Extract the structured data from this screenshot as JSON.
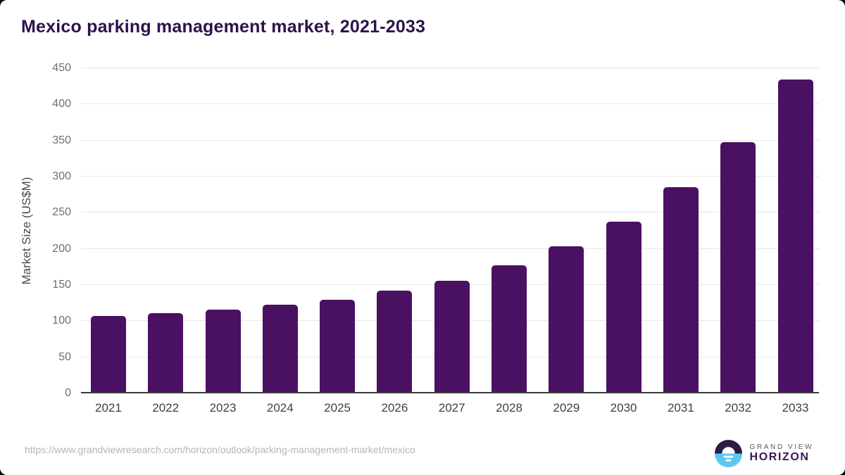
{
  "page": {
    "title": "Mexico parking management market, 2021-2033",
    "source_url": "https://www.grandviewresearch.com/horizon/outlook/parking-management-market/mexico"
  },
  "logo": {
    "brand_top": "GRAND VIEW",
    "brand_bottom": "HORIZON"
  },
  "colors": {
    "bar": "#4a1062",
    "title": "#2d124b",
    "y_axis_title": "#4a4a4a",
    "y_tick_label": "#6f6f6f",
    "x_tick_label": "#3f3f3f",
    "gridline": "#e7e7e7",
    "axis_line": "#3c3c3c",
    "url_text": "#b5b5b5",
    "logo_dark_half": "#2a1e45",
    "logo_blue_half": "#5dc6f1",
    "logo_grand_view_text": "#5a5a5a",
    "logo_horizon_text": "#3b1653"
  },
  "chart_data": {
    "type": "bar",
    "title": "Mexico parking management market, 2021-2033",
    "categories": [
      "2021",
      "2022",
      "2023",
      "2024",
      "2025",
      "2026",
      "2027",
      "2028",
      "2029",
      "2030",
      "2031",
      "2032",
      "2033"
    ],
    "values": [
      107,
      111,
      116,
      123,
      130,
      142,
      156,
      177,
      204,
      238,
      285,
      348,
      434
    ],
    "xlabel": "",
    "ylabel": "Market Size (US$M)",
    "ylim": [
      0,
      450
    ],
    "yticks": [
      0,
      50,
      100,
      150,
      200,
      250,
      300,
      350,
      400,
      450
    ],
    "grid": "horizontal",
    "legend": "none",
    "bar_color": "#4a1062"
  }
}
